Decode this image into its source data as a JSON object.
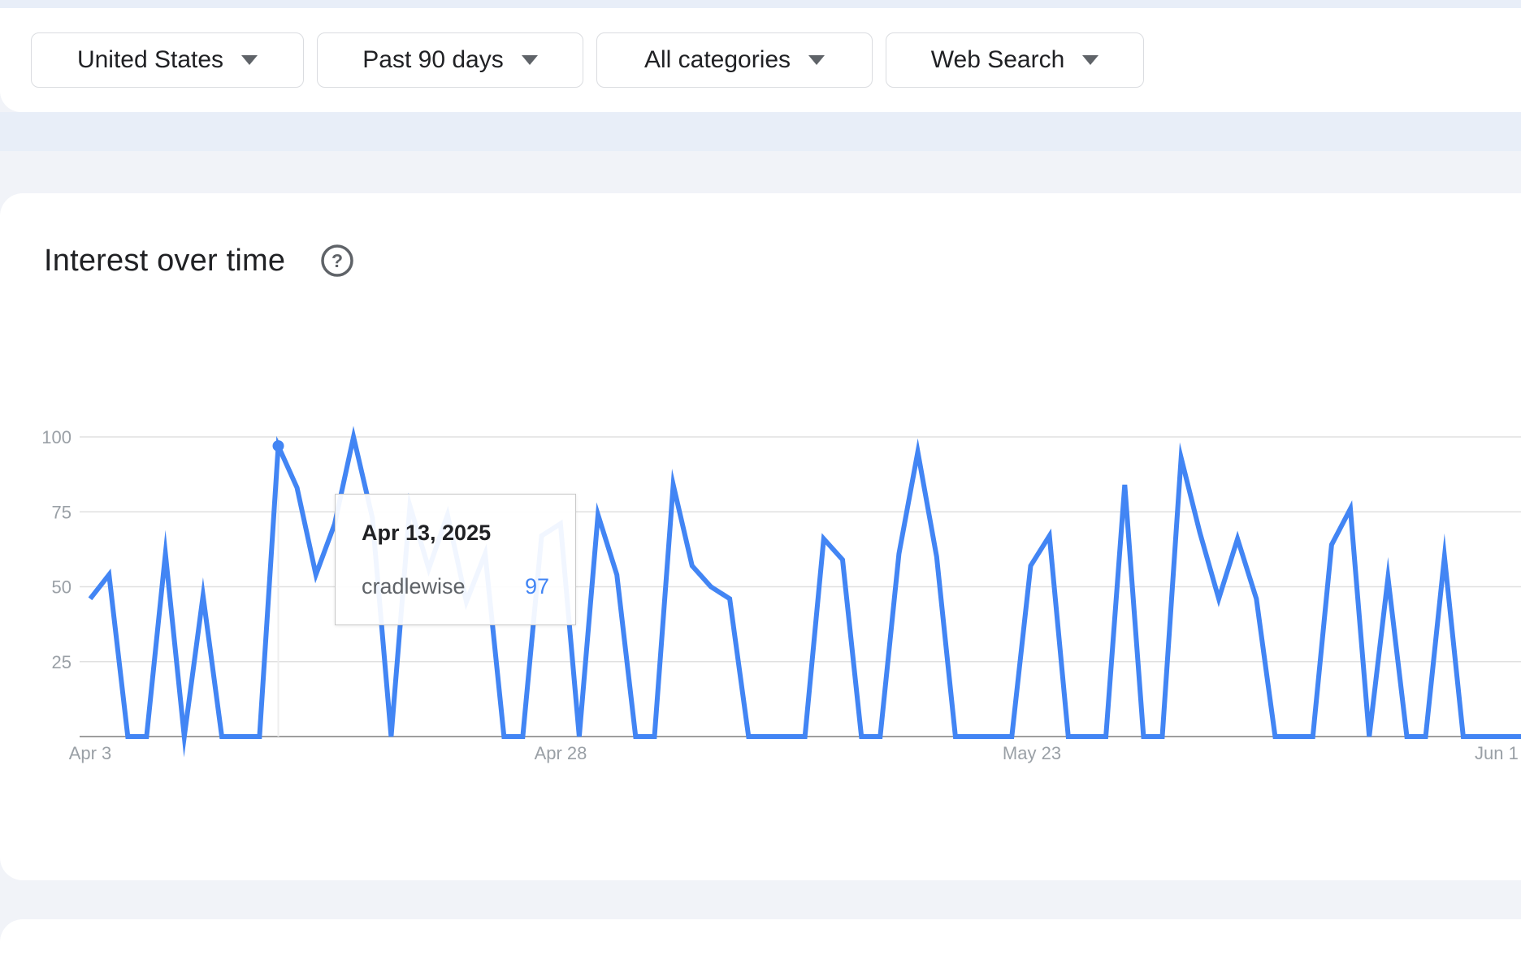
{
  "filters": {
    "geo": "United States",
    "time": "Past 90 days",
    "category": "All categories",
    "property": "Web Search"
  },
  "chart_title": "Interest over time",
  "help_icon": "help-circle-icon",
  "tooltip": {
    "date": "Apr 13, 2025",
    "term": "cradlewise",
    "value": "97"
  },
  "colors": {
    "series": "#4285f4",
    "grid": "#e0e0e0",
    "axis_text": "#9aa0a6"
  },
  "chart_data": {
    "type": "line",
    "title": "Interest over time",
    "xlabel": "",
    "ylabel": "",
    "ylim": [
      0,
      100
    ],
    "yticks": [
      25,
      50,
      75,
      100
    ],
    "xticks": [
      "Apr 3",
      "Apr 28",
      "May 23",
      "Jun 1"
    ],
    "grid": true,
    "highlight": {
      "date": "Apr 13, 2025",
      "value": 97
    },
    "series": [
      {
        "name": "cradlewise",
        "x": [
          "2025-04-03",
          "2025-04-04",
          "2025-04-05",
          "2025-04-06",
          "2025-04-07",
          "2025-04-08",
          "2025-04-09",
          "2025-04-10",
          "2025-04-11",
          "2025-04-12",
          "2025-04-13",
          "2025-04-14",
          "2025-04-15",
          "2025-04-16",
          "2025-04-17",
          "2025-04-18",
          "2025-04-19",
          "2025-04-20",
          "2025-04-21",
          "2025-04-22",
          "2025-04-23",
          "2025-04-24",
          "2025-04-25",
          "2025-04-26",
          "2025-04-27",
          "2025-04-28",
          "2025-04-29",
          "2025-04-30",
          "2025-05-01",
          "2025-05-02",
          "2025-05-03",
          "2025-05-04",
          "2025-05-05",
          "2025-05-06",
          "2025-05-07",
          "2025-05-08",
          "2025-05-09",
          "2025-05-10",
          "2025-05-11",
          "2025-05-12",
          "2025-05-13",
          "2025-05-14",
          "2025-05-15",
          "2025-05-16",
          "2025-05-17",
          "2025-05-18",
          "2025-05-19",
          "2025-05-20",
          "2025-05-21",
          "2025-05-22",
          "2025-05-23",
          "2025-05-24",
          "2025-05-25",
          "2025-05-26",
          "2025-05-27",
          "2025-05-28",
          "2025-05-29",
          "2025-05-30",
          "2025-05-31",
          "2025-06-01",
          "2025-06-02",
          "2025-06-03",
          "2025-06-04",
          "2025-06-05",
          "2025-06-06",
          "2025-06-07",
          "2025-06-08",
          "2025-06-09",
          "2025-06-10",
          "2025-06-11",
          "2025-06-12",
          "2025-06-13",
          "2025-06-14",
          "2025-06-15",
          "2025-06-16",
          "2025-06-17",
          "2025-06-18",
          "2025-06-19",
          "2025-06-20",
          "2025-06-21",
          "2025-06-22",
          "2025-06-23",
          "2025-06-24",
          "2025-06-25"
        ],
        "values": [
          46,
          54,
          0,
          0,
          61,
          0,
          47,
          0,
          0,
          0,
          97,
          83,
          54,
          71,
          100,
          73,
          0,
          77,
          56,
          74,
          45,
          61,
          0,
          0,
          67,
          71,
          0,
          74,
          54,
          0,
          0,
          84,
          57,
          50,
          46,
          0,
          0,
          0,
          0,
          66,
          59,
          0,
          0,
          61,
          95,
          60,
          0,
          0,
          0,
          0,
          57,
          67,
          0,
          0,
          0,
          84,
          0,
          0,
          93,
          68,
          46,
          66,
          46,
          0,
          0,
          0,
          64,
          76,
          0,
          53,
          0,
          0,
          60,
          0,
          0,
          0,
          0,
          0,
          0,
          0,
          0,
          0,
          0,
          0
        ]
      }
    ]
  }
}
